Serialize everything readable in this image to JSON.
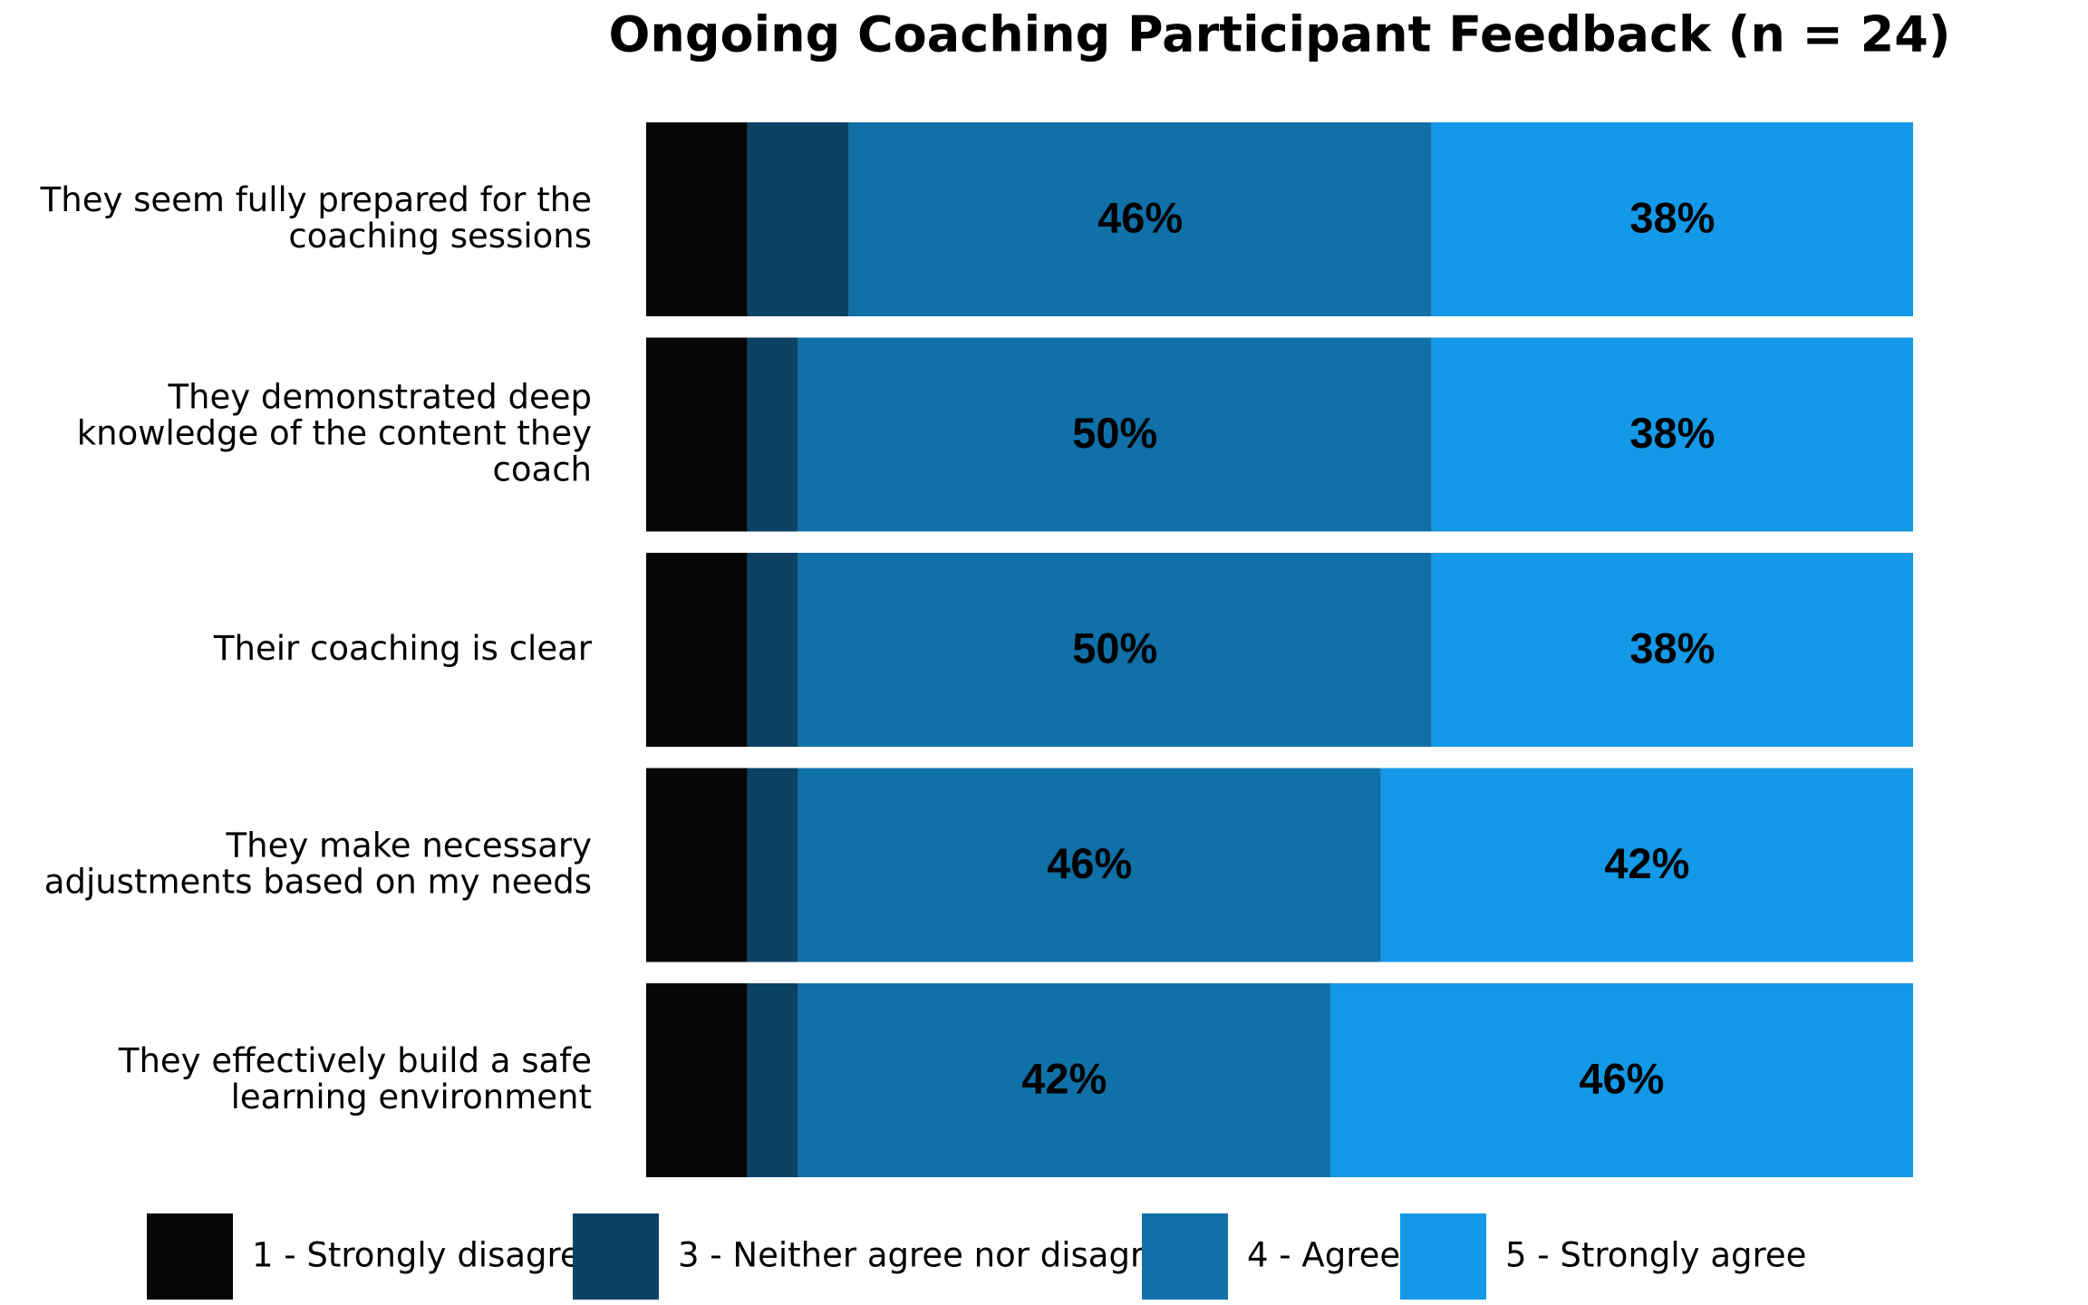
{
  "chart_data": {
    "type": "stacked-barh",
    "title": "Ongoing Coaching Participant Feedback (n = 24)",
    "categories": [
      "They seem fully prepared for the coaching sessions",
      "They demonstrated deep knowledge of the content they coach",
      "Their coaching is clear",
      "They make necessary adjustments based on my needs",
      "They effectively build a safe learning environment"
    ],
    "xlim": [
      0,
      100
    ],
    "series": [
      {
        "name": "1 - Strongly disagree",
        "color": "#060607",
        "values": [
          8,
          8,
          8,
          8,
          8
        ],
        "value_labels": [
          null,
          null,
          null,
          null,
          null
        ]
      },
      {
        "name": "3 - Neither agree nor disagree",
        "color": "#0b4266",
        "values": [
          8,
          4,
          4,
          4,
          4
        ],
        "value_labels": [
          null,
          null,
          null,
          null,
          null
        ]
      },
      {
        "name": "4 - Agree",
        "color": "#1070a8",
        "values": [
          46,
          50,
          50,
          46,
          42
        ],
        "value_labels": [
          "46%",
          "50%",
          "50%",
          "46%",
          "42%"
        ]
      },
      {
        "name": "5 - Strongly agree",
        "color": "#1499e8",
        "values": [
          38,
          38,
          38,
          42,
          46
        ],
        "value_labels": [
          "38%",
          "38%",
          "38%",
          "42%",
          "46%"
        ]
      }
    ],
    "legend": "bottom"
  }
}
